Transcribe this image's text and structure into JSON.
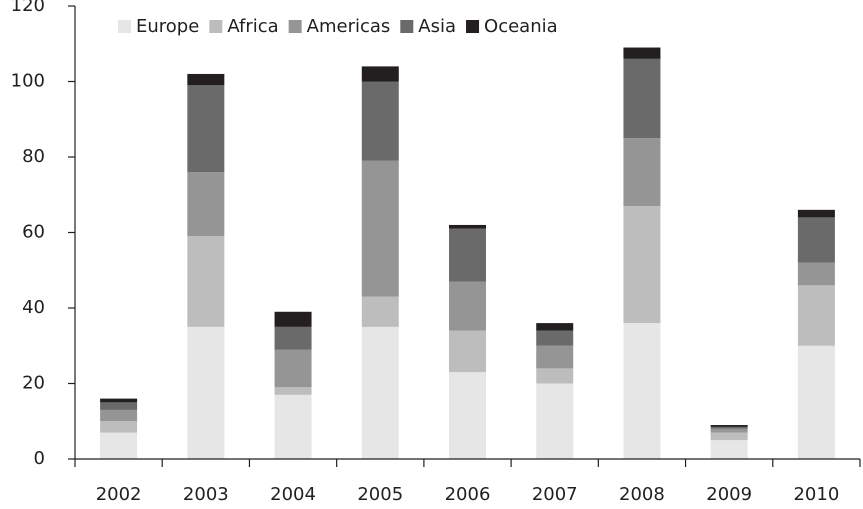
{
  "chart_data": {
    "type": "stacked_bar",
    "categories": [
      "2002",
      "2003",
      "2004",
      "2005",
      "2006",
      "2007",
      "2008",
      "2009",
      "2010"
    ],
    "series": [
      {
        "name": "Europe",
        "color": "#e6e6e6",
        "values": [
          7,
          35,
          17,
          35,
          23,
          20,
          36,
          5,
          30
        ]
      },
      {
        "name": "Africa",
        "color": "#bdbdbe",
        "values": [
          3,
          24,
          2,
          8,
          11,
          4,
          31,
          2,
          16
        ]
      },
      {
        "name": "Americas",
        "color": "#959595",
        "values": [
          3,
          17,
          10,
          36,
          13,
          6,
          18,
          1,
          6
        ]
      },
      {
        "name": "Asia",
        "color": "#6a6a6a",
        "values": [
          2,
          23,
          6,
          21,
          14,
          4,
          21,
          0.5,
          12
        ]
      },
      {
        "name": "Oceania",
        "color": "#231f20",
        "values": [
          1,
          3,
          4,
          4,
          1,
          2,
          3,
          0.5,
          2
        ]
      }
    ],
    "ylim": [
      0,
      120
    ],
    "yticks": [
      0,
      20,
      40,
      60,
      80,
      100,
      120
    ],
    "legend": "top-left"
  }
}
